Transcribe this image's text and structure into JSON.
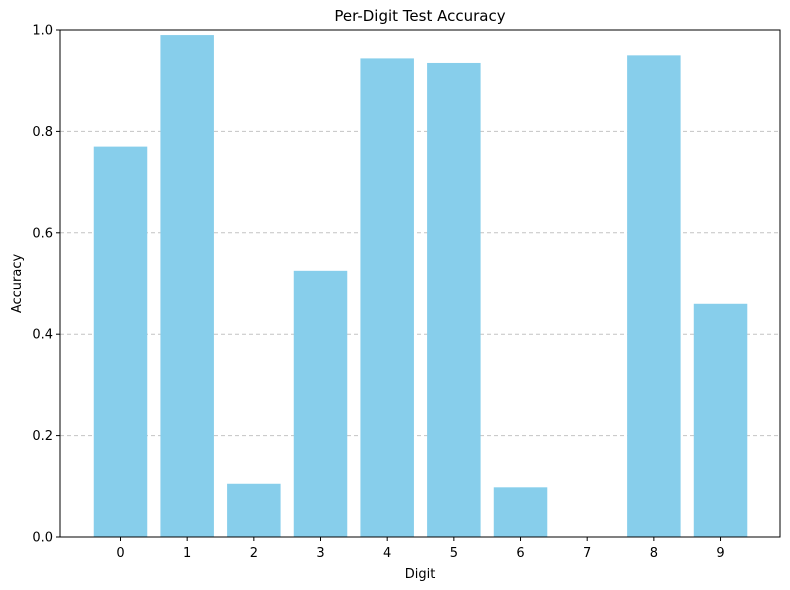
{
  "chart_data": {
    "type": "bar",
    "title": "Per-Digit Test Accuracy",
    "xlabel": "Digit",
    "ylabel": "Accuracy",
    "categories": [
      "0",
      "1",
      "2",
      "3",
      "4",
      "5",
      "6",
      "7",
      "8",
      "9"
    ],
    "values": [
      0.77,
      0.99,
      0.105,
      0.525,
      0.944,
      0.935,
      0.098,
      0.0,
      0.95,
      0.46
    ],
    "ylim": [
      0,
      1.0
    ],
    "yticks": [
      "0.0",
      "0.2",
      "0.4",
      "0.6",
      "0.8",
      "1.0"
    ],
    "grid": "y-dashed",
    "bar_color": "#87ceeb",
    "grid_color": "#c4c4c4"
  }
}
